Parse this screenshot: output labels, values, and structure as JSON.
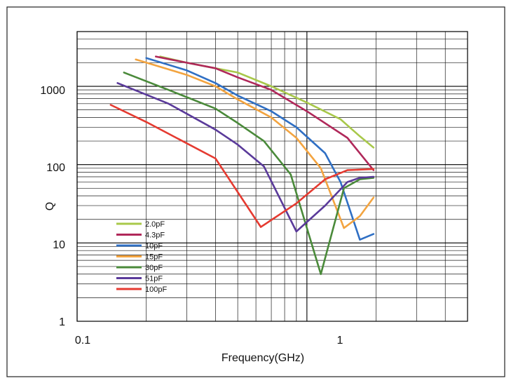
{
  "chart_data": {
    "type": "line",
    "title": "",
    "xlabel": "Frequency(GHz)",
    "ylabel": "Q",
    "x_scale": "log",
    "y_scale": "log",
    "xlim": [
      0.1,
      5
    ],
    "ylim": [
      1,
      5000
    ],
    "x_tick_labels": [
      "0.1",
      "1"
    ],
    "y_tick_labels": [
      "1",
      "10",
      "100",
      "1000"
    ],
    "grid": true,
    "legend_position": "bottom-left",
    "series": [
      {
        "name": "2.0pF",
        "color": "#a8c84a",
        "x": [
          0.23,
          0.3,
          0.4,
          0.5,
          0.7,
          1.0,
          1.4,
          1.7,
          1.95
        ],
        "y": [
          2400,
          2000,
          1700,
          1500,
          1000,
          620,
          380,
          230,
          165
        ]
      },
      {
        "name": "4.3pF",
        "color": "#b0285a",
        "x": [
          0.22,
          0.3,
          0.4,
          0.5,
          0.7,
          1.0,
          1.5,
          1.95
        ],
        "y": [
          2400,
          2000,
          1700,
          1300,
          900,
          480,
          220,
          85
        ]
      },
      {
        "name": "10pF",
        "color": "#2f6fc4",
        "x": [
          0.2,
          0.3,
          0.4,
          0.5,
          0.7,
          0.9,
          1.2,
          1.4,
          1.7,
          1.95
        ],
        "y": [
          2300,
          1600,
          1100,
          760,
          480,
          300,
          140,
          60,
          11,
          13
        ]
      },
      {
        "name": "15pF",
        "color": "#f3a440",
        "x": [
          0.18,
          0.3,
          0.4,
          0.5,
          0.7,
          0.9,
          1.15,
          1.45,
          1.7,
          1.95
        ],
        "y": [
          2200,
          1400,
          1000,
          680,
          400,
          220,
          90,
          15.5,
          22,
          38
        ]
      },
      {
        "name": "30pF",
        "color": "#4a8a3a",
        "x": [
          0.16,
          0.25,
          0.4,
          0.5,
          0.65,
          0.85,
          1.15,
          1.45,
          1.7,
          1.95
        ],
        "y": [
          1500,
          900,
          520,
          340,
          200,
          75,
          4,
          50,
          65,
          68
        ]
      },
      {
        "name": "51pF",
        "color": "#5a3a9a",
        "x": [
          0.15,
          0.25,
          0.4,
          0.5,
          0.65,
          0.9,
          1.2,
          1.5,
          1.7,
          1.95
        ],
        "y": [
          1100,
          600,
          280,
          180,
          95,
          14,
          30,
          60,
          68,
          70
        ]
      },
      {
        "name": "100pF",
        "color": "#e53a30",
        "x": [
          0.14,
          0.2,
          0.4,
          0.63,
          0.9,
          1.2,
          1.5,
          1.95
        ],
        "y": [
          580,
          350,
          120,
          16,
          32,
          65,
          85,
          88
        ]
      }
    ]
  }
}
